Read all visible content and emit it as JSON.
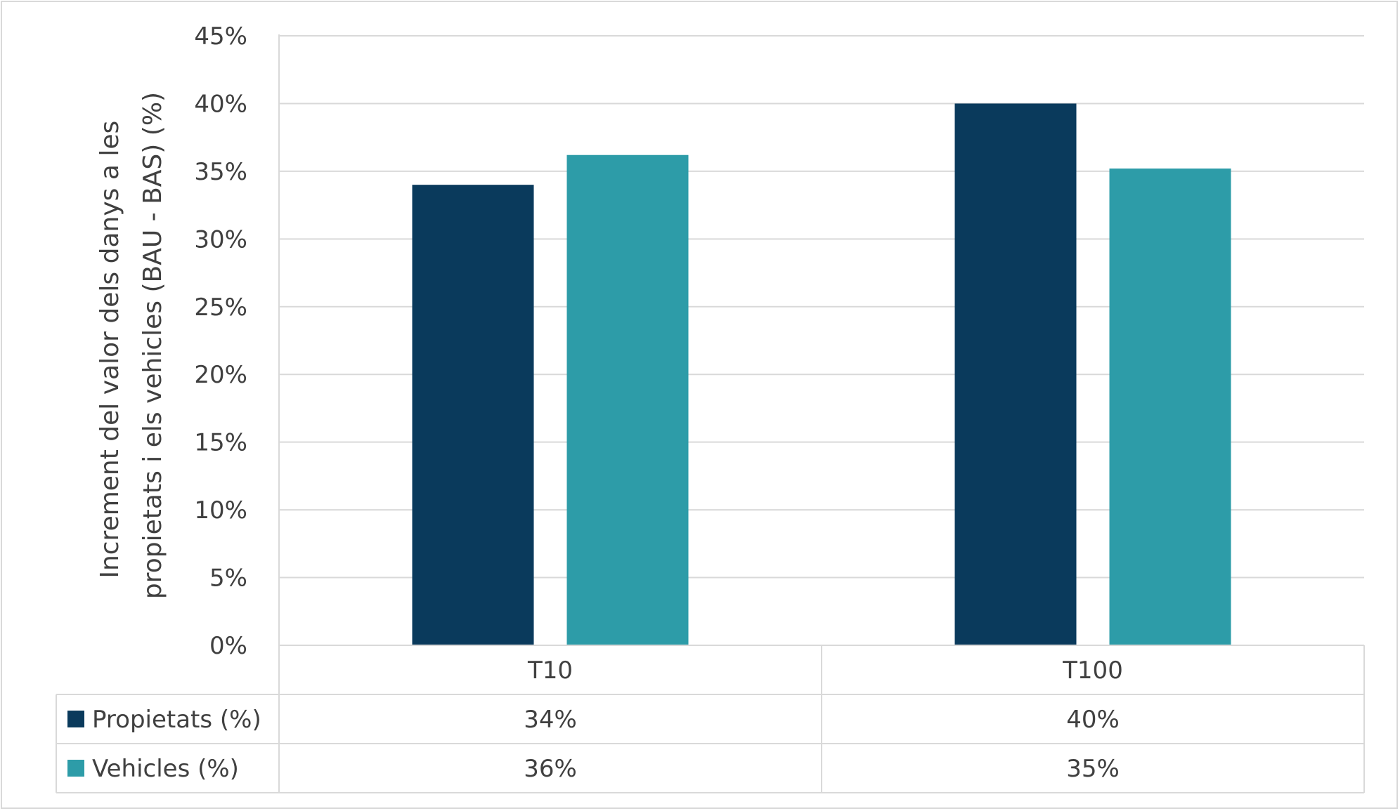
{
  "chart_data": {
    "type": "bar",
    "categories": [
      "T10",
      "T100"
    ],
    "series": [
      {
        "name": "Propietats (%)",
        "values": [
          34,
          40
        ],
        "color": "#0a3a5c",
        "table_values": [
          "34%",
          "40%"
        ]
      },
      {
        "name": "Vehicles (%)",
        "values": [
          36.2,
          35.2
        ],
        "color": "#2d9ca8",
        "table_values": [
          "36%",
          "35%"
        ]
      }
    ],
    "ylabel_lines": [
      "Increment del valor dels danys a les",
      "propietats i els vehicles (BAU - BAS) (%)"
    ],
    "ylim": [
      0,
      45
    ],
    "yticks": [
      0,
      5,
      10,
      15,
      20,
      25,
      30,
      35,
      40,
      45
    ],
    "ytick_labels": [
      "0%",
      "5%",
      "10%",
      "15%",
      "20%",
      "25%",
      "30%",
      "35%",
      "40%",
      "45%"
    ],
    "grid": true,
    "legend": "data-table",
    "gridline_color": "#d9d9d9"
  }
}
